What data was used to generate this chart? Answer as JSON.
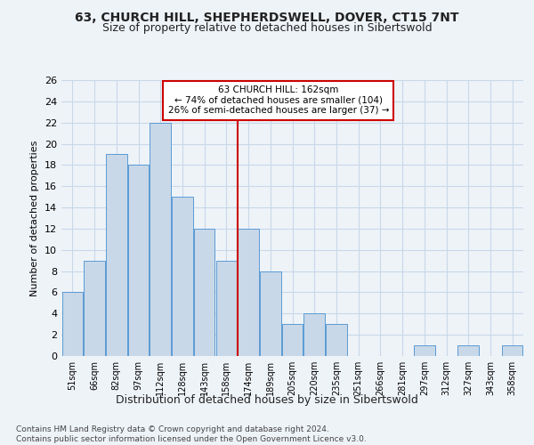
{
  "title1": "63, CHURCH HILL, SHEPHERDSWELL, DOVER, CT15 7NT",
  "title2": "Size of property relative to detached houses in Sibertswold",
  "xlabel": "Distribution of detached houses by size in Sibertswold",
  "ylabel": "Number of detached properties",
  "categories": [
    "51sqm",
    "66sqm",
    "82sqm",
    "97sqm",
    "112sqm",
    "128sqm",
    "143sqm",
    "158sqm",
    "174sqm",
    "189sqm",
    "205sqm",
    "220sqm",
    "235sqm",
    "251sqm",
    "266sqm",
    "281sqm",
    "297sqm",
    "312sqm",
    "327sqm",
    "343sqm",
    "358sqm"
  ],
  "values": [
    6,
    9,
    19,
    18,
    22,
    15,
    12,
    9,
    12,
    8,
    3,
    4,
    3,
    0,
    0,
    0,
    1,
    0,
    1,
    0,
    1
  ],
  "bar_color": "#c8d8e8",
  "bar_edge_color": "#5b9bd5",
  "grid_color": "#c8d8e8",
  "background_color": "#eef3f8",
  "vline_color": "#cc0000",
  "vline_pos": 7.5,
  "annotation_text": "63 CHURCH HILL: 162sqm\n← 74% of detached houses are smaller (104)\n26% of semi-detached houses are larger (37) →",
  "annotation_box_color": "#ffffff",
  "annotation_border_color": "#cc0000",
  "footnote": "Contains HM Land Registry data © Crown copyright and database right 2024.\nContains public sector information licensed under the Open Government Licence v3.0.",
  "ylim": [
    0,
    26
  ],
  "yticks": [
    0,
    2,
    4,
    6,
    8,
    10,
    12,
    14,
    16,
    18,
    20,
    22,
    24,
    26
  ]
}
